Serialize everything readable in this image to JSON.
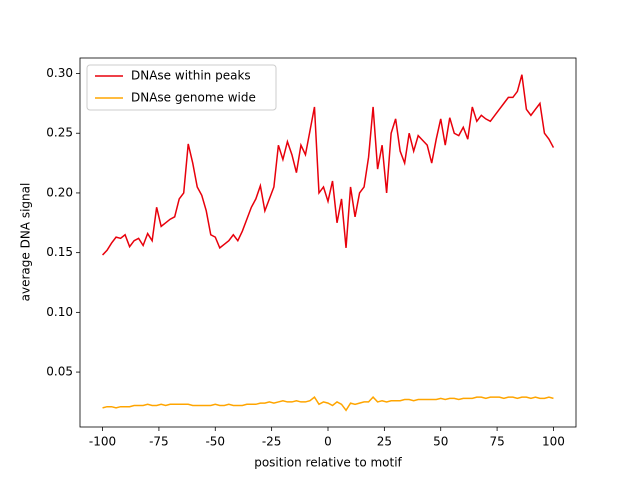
{
  "chart_data": {
    "type": "line",
    "x_label": "position relative to motif",
    "y_label": "average DNA signal",
    "x": [
      -100,
      -98,
      -96,
      -94,
      -92,
      -90,
      -88,
      -86,
      -84,
      -82,
      -80,
      -78,
      -76,
      -74,
      -72,
      -70,
      -68,
      -66,
      -64,
      -62,
      -60,
      -58,
      -56,
      -54,
      -52,
      -50,
      -48,
      -46,
      -44,
      -42,
      -40,
      -38,
      -36,
      -34,
      -32,
      -30,
      -28,
      -26,
      -24,
      -22,
      -20,
      -18,
      -16,
      -14,
      -12,
      -10,
      -8,
      -6,
      -4,
      -2,
      0,
      2,
      4,
      6,
      8,
      10,
      12,
      14,
      16,
      18,
      20,
      22,
      24,
      26,
      28,
      30,
      32,
      34,
      36,
      38,
      40,
      42,
      44,
      46,
      48,
      50,
      52,
      54,
      56,
      58,
      60,
      62,
      64,
      66,
      68,
      70,
      72,
      74,
      76,
      78,
      80,
      82,
      84,
      86,
      88,
      90,
      92,
      94,
      96,
      98,
      100
    ],
    "series": [
      {
        "name": "DNAse within peaks",
        "color": "#e8000b",
        "values": [
          0.148,
          0.152,
          0.158,
          0.163,
          0.162,
          0.165,
          0.155,
          0.16,
          0.162,
          0.156,
          0.166,
          0.16,
          0.188,
          0.172,
          0.175,
          0.178,
          0.18,
          0.195,
          0.2,
          0.241,
          0.225,
          0.205,
          0.198,
          0.185,
          0.165,
          0.163,
          0.154,
          0.157,
          0.16,
          0.165,
          0.16,
          0.168,
          0.178,
          0.188,
          0.195,
          0.206,
          0.185,
          0.195,
          0.205,
          0.24,
          0.228,
          0.243,
          0.232,
          0.217,
          0.24,
          0.232,
          0.252,
          0.272,
          0.2,
          0.205,
          0.193,
          0.21,
          0.175,
          0.195,
          0.154,
          0.205,
          0.18,
          0.2,
          0.205,
          0.23,
          0.272,
          0.22,
          0.24,
          0.2,
          0.25,
          0.262,
          0.235,
          0.225,
          0.25,
          0.235,
          0.248,
          0.244,
          0.24,
          0.225,
          0.245,
          0.262,
          0.24,
          0.263,
          0.25,
          0.248,
          0.255,
          0.245,
          0.272,
          0.26,
          0.265,
          0.262,
          0.26,
          0.265,
          0.27,
          0.275,
          0.28,
          0.28,
          0.285,
          0.299,
          0.27,
          0.265,
          0.27,
          0.275,
          0.25,
          0.245,
          0.238
        ]
      },
      {
        "name": "DNAse genome wide",
        "color": "#ffa500",
        "values": [
          0.02,
          0.021,
          0.021,
          0.02,
          0.021,
          0.021,
          0.021,
          0.022,
          0.022,
          0.022,
          0.023,
          0.022,
          0.022,
          0.023,
          0.022,
          0.023,
          0.023,
          0.023,
          0.023,
          0.023,
          0.022,
          0.022,
          0.022,
          0.022,
          0.022,
          0.023,
          0.022,
          0.022,
          0.023,
          0.022,
          0.022,
          0.022,
          0.023,
          0.023,
          0.023,
          0.024,
          0.024,
          0.025,
          0.024,
          0.025,
          0.026,
          0.025,
          0.025,
          0.026,
          0.025,
          0.025,
          0.026,
          0.029,
          0.023,
          0.025,
          0.024,
          0.022,
          0.025,
          0.023,
          0.018,
          0.024,
          0.023,
          0.024,
          0.025,
          0.025,
          0.029,
          0.025,
          0.026,
          0.025,
          0.026,
          0.026,
          0.026,
          0.027,
          0.027,
          0.026,
          0.027,
          0.027,
          0.027,
          0.027,
          0.027,
          0.028,
          0.027,
          0.028,
          0.028,
          0.027,
          0.028,
          0.028,
          0.028,
          0.029,
          0.029,
          0.028,
          0.029,
          0.029,
          0.029,
          0.028,
          0.029,
          0.029,
          0.028,
          0.029,
          0.029,
          0.028,
          0.029,
          0.028,
          0.028,
          0.029,
          0.028
        ]
      }
    ],
    "xlim": [
      -110,
      110
    ],
    "xticks": [
      -100,
      -75,
      -50,
      -25,
      0,
      25,
      50,
      75,
      100
    ],
    "ylim": [
      0.004,
      0.313
    ],
    "yticks": [
      0.05,
      {
        "value": 0.1,
        "label": "0.10"
      },
      0.15,
      {
        "value": 0.2,
        "label": "0.20"
      },
      0.25,
      {
        "value": 0.3,
        "label": "0.30"
      }
    ],
    "legend": "upper left"
  }
}
